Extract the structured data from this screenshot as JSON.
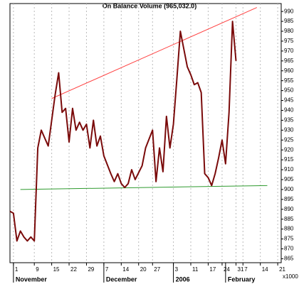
{
  "chart_data": {
    "type": "line",
    "title": "On Balance Volume (965,032.0)",
    "axis_note": "x1000",
    "x": [
      -1,
      0,
      1,
      2,
      3,
      4,
      5,
      6,
      7,
      8,
      10,
      11,
      12,
      13,
      14,
      15,
      16,
      17,
      18,
      19,
      20,
      21,
      22,
      23,
      24,
      25,
      26,
      28,
      29,
      30,
      31,
      32,
      33,
      34,
      35,
      37,
      38,
      40,
      41,
      42,
      43,
      44,
      45,
      46,
      47,
      48,
      50,
      51,
      52,
      53,
      54,
      55,
      56,
      57,
      58,
      59,
      60,
      61,
      62,
      63,
      64
    ],
    "series": [
      {
        "color": "#7a0a0a",
        "values": [
          889,
          888,
          874,
          879,
          876,
          874,
          876,
          874,
          921,
          930,
          922,
          935,
          948,
          959,
          939,
          941,
          924,
          941,
          930,
          934,
          930,
          933,
          921,
          935,
          922,
          927,
          917,
          908,
          904,
          908,
          903,
          901,
          903,
          910,
          905,
          912,
          921,
          930,
          904,
          921,
          909,
          937,
          921,
          933,
          956,
          980,
          962,
          958,
          953,
          954,
          949,
          908,
          906,
          902,
          908,
          916,
          925,
          913,
          939,
          985,
          965
        ]
      }
    ],
    "trendlines": [
      {
        "color": "#ff4040",
        "x": [
          11,
          70
        ],
        "values": [
          946,
          992
        ]
      },
      {
        "color": "#2e9a2e",
        "x": [
          2,
          73
        ],
        "values": [
          900,
          902
        ]
      }
    ],
    "xlim": [
      -1,
      77
    ],
    "ylim": [
      863,
      994
    ],
    "xticks": [
      {
        "value": 0,
        "label": "1"
      },
      {
        "value": 6,
        "label": "9"
      },
      {
        "value": 11,
        "label": "15"
      },
      {
        "value": 16,
        "label": "22"
      },
      {
        "value": 21,
        "label": "29"
      },
      {
        "value": 26,
        "label": "7"
      },
      {
        "value": 31,
        "label": "14"
      },
      {
        "value": 36,
        "label": "20"
      },
      {
        "value": 40,
        "label": "27"
      },
      {
        "value": 46,
        "label": "3"
      },
      {
        "value": 51,
        "label": "11"
      },
      {
        "value": 56,
        "label": "17"
      },
      {
        "value": 60,
        "label": "24"
      },
      {
        "value": 64,
        "label": "31"
      },
      {
        "value": 66,
        "label": "7"
      },
      {
        "value": 71,
        "label": "14"
      },
      {
        "value": 76,
        "label": "21"
      }
    ],
    "month_labels": [
      {
        "value": 0,
        "label": "November"
      },
      {
        "value": 26,
        "label": "December"
      },
      {
        "value": 46,
        "label": "2006"
      },
      {
        "value": 61,
        "label": "February"
      }
    ],
    "yticks": [
      865,
      870,
      875,
      880,
      885,
      890,
      895,
      900,
      905,
      910,
      915,
      920,
      925,
      930,
      935,
      940,
      945,
      950,
      955,
      960,
      965,
      970,
      975,
      980,
      985,
      990
    ],
    "grid": "x"
  }
}
